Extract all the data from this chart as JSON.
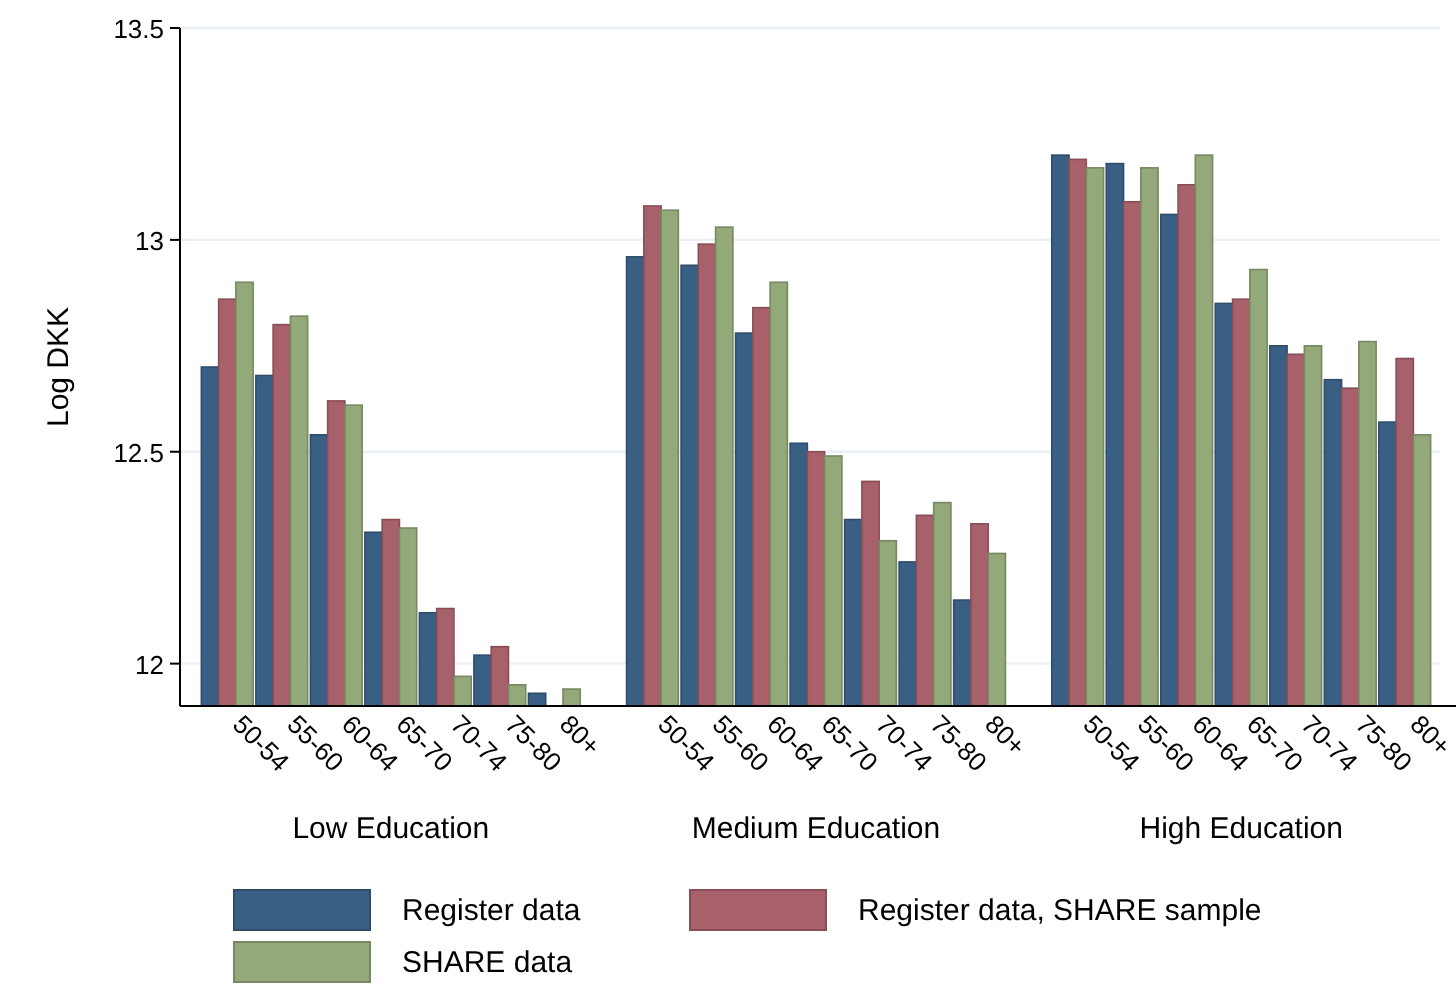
{
  "chart_data": {
    "type": "bar",
    "ylabel": "Log DKK",
    "categories": [
      "50-54",
      "55-60",
      "60-64",
      "65-70",
      "70-74",
      "75-80",
      "80+",
      "50-54",
      "55-60",
      "60-64",
      "65-70",
      "70-74",
      "75-80",
      "80+",
      "50-54",
      "55-60",
      "60-64",
      "65-70",
      "70-74",
      "75-80",
      "80+"
    ],
    "series": [
      {
        "name": "Register data",
        "color": "#3a5f85",
        "values": [
          12.7,
          12.68,
          12.54,
          12.31,
          12.12,
          12.02,
          11.93,
          12.96,
          12.94,
          12.78,
          12.52,
          12.34,
          12.24,
          12.15,
          13.2,
          13.18,
          13.06,
          12.85,
          12.75,
          12.67,
          12.57
        ]
      },
      {
        "name": "Register data, SHARE sample",
        "color": "#a8606a",
        "values": [
          12.86,
          12.8,
          12.62,
          12.34,
          12.13,
          12.04,
          null,
          13.08,
          12.99,
          12.84,
          12.5,
          12.43,
          12.35,
          12.33,
          13.19,
          13.09,
          13.13,
          12.86,
          12.73,
          12.65,
          12.72
        ]
      },
      {
        "name": "SHARE data",
        "color": "#93a97a",
        "values": [
          12.9,
          12.82,
          12.61,
          12.32,
          11.97,
          11.95,
          11.94,
          13.07,
          13.03,
          12.9,
          12.49,
          12.29,
          12.38,
          12.26,
          13.17,
          13.17,
          13.2,
          12.93,
          12.75,
          12.76,
          12.54
        ]
      }
    ],
    "annotations": [
      "Low Education",
      "Medium Education",
      "High Education"
    ],
    "ylim": [
      11.9,
      13.5
    ],
    "yticks": [
      12,
      12.5,
      13,
      13.5
    ],
    "grid": "y",
    "legend": "bottom"
  }
}
